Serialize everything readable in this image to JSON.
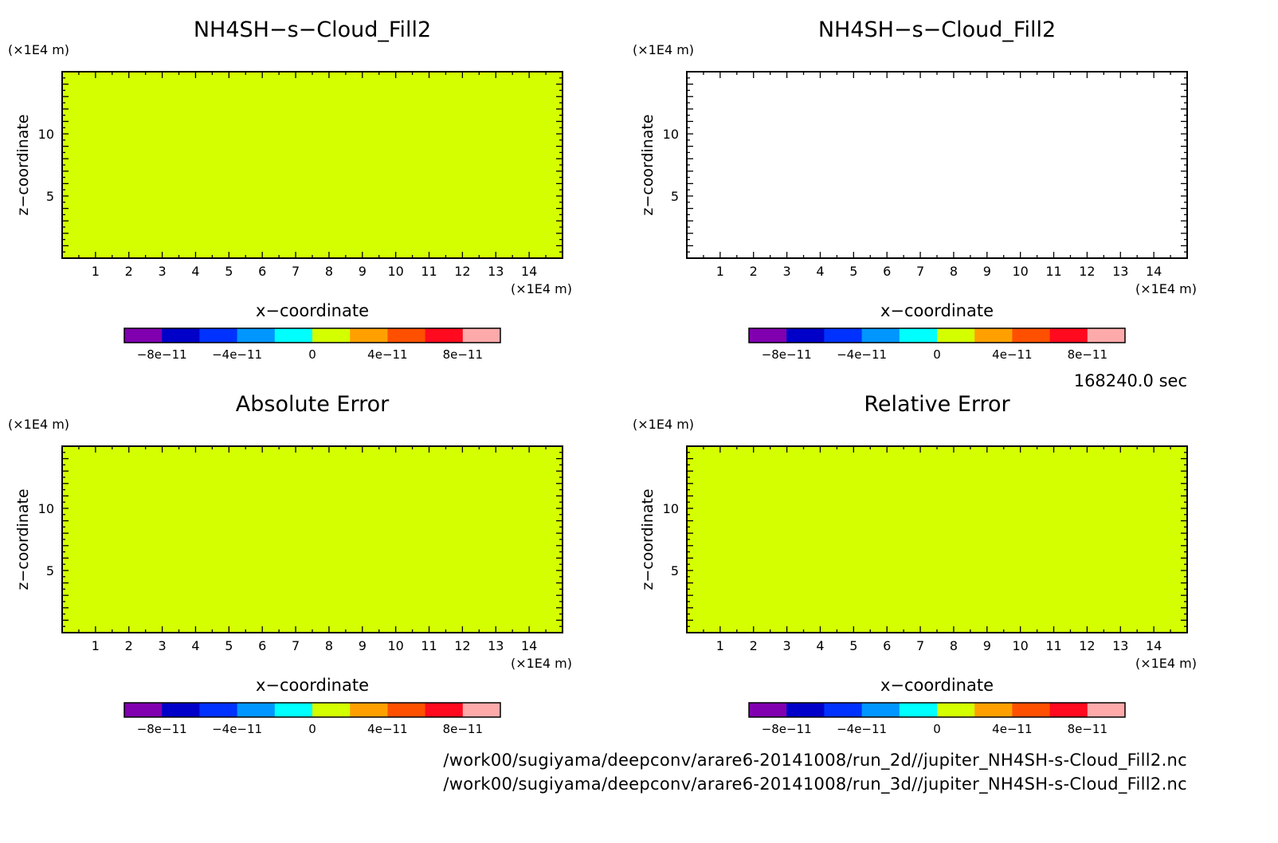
{
  "time_label": "168240.0 sec",
  "file_paths": [
    "/work00/sugiyama/deepconv/arare6-20141008/run_2d//jupiter_NH4SH-s-Cloud_Fill2.nc",
    "/work00/sugiyama/deepconv/arare6-20141008/run_3d//jupiter_NH4SH-s-Cloud_Fill2.nc"
  ],
  "colors": {
    "field_fill": "#d4ff00",
    "empty_fill": "#ffffff",
    "frame": "#000000"
  },
  "chart_data": [
    {
      "type": "heatmap",
      "title": "NH4SH−s−Cloud_Fill2",
      "xlabel": "x−coordinate",
      "ylabel": "z−coordinate",
      "x_unit": "(×1E4 m)",
      "y_unit": "(×1E4 m)",
      "xlim": [
        0,
        15
      ],
      "ylim": [
        0,
        15
      ],
      "x_ticks": [
        "1",
        "2",
        "3",
        "4",
        "5",
        "6",
        "7",
        "8",
        "9",
        "10",
        "11",
        "12",
        "13",
        "14"
      ],
      "y_ticks": [
        "5",
        "10"
      ],
      "field_value": 0,
      "filled": true
    },
    {
      "type": "heatmap",
      "title": "NH4SH−s−Cloud_Fill2",
      "xlabel": "x−coordinate",
      "ylabel": "z−coordinate",
      "x_unit": "(×1E4 m)",
      "y_unit": "(×1E4 m)",
      "xlim": [
        0,
        15
      ],
      "ylim": [
        0,
        15
      ],
      "x_ticks": [
        "1",
        "2",
        "3",
        "4",
        "5",
        "6",
        "7",
        "8",
        "9",
        "10",
        "11",
        "12",
        "13",
        "14"
      ],
      "y_ticks": [
        "5",
        "10"
      ],
      "field_value": null,
      "filled": false
    },
    {
      "type": "heatmap",
      "title": "Absolute Error",
      "xlabel": "x−coordinate",
      "ylabel": "z−coordinate",
      "x_unit": "(×1E4 m)",
      "y_unit": "(×1E4 m)",
      "xlim": [
        0,
        15
      ],
      "ylim": [
        0,
        15
      ],
      "x_ticks": [
        "1",
        "2",
        "3",
        "4",
        "5",
        "6",
        "7",
        "8",
        "9",
        "10",
        "11",
        "12",
        "13",
        "14"
      ],
      "y_ticks": [
        "5",
        "10"
      ],
      "field_value": 0,
      "filled": true
    },
    {
      "type": "heatmap",
      "title": "Relative Error",
      "xlabel": "x−coordinate",
      "ylabel": "z−coordinate",
      "x_unit": "(×1E4 m)",
      "y_unit": "(×1E4 m)",
      "xlim": [
        0,
        15
      ],
      "ylim": [
        0,
        15
      ],
      "x_ticks": [
        "1",
        "2",
        "3",
        "4",
        "5",
        "6",
        "7",
        "8",
        "9",
        "10",
        "11",
        "12",
        "13",
        "14"
      ],
      "y_ticks": [
        "5",
        "10"
      ],
      "field_value": 0,
      "filled": true
    }
  ],
  "colorbar": {
    "range": [
      -1e-10,
      1e-10
    ],
    "colors": [
      "#8000b0",
      "#0000c8",
      "#0032ff",
      "#0096ff",
      "#00ffff",
      "#d4ff00",
      "#ffa000",
      "#ff5000",
      "#ff0a1e",
      "#ffaaaa"
    ],
    "tick_labels": [
      "−8e−11",
      "−4e−11",
      "0",
      "4e−11",
      "8e−11"
    ],
    "tick_values": [
      -8e-11,
      -4e-11,
      0,
      4e-11,
      8e-11
    ]
  }
}
